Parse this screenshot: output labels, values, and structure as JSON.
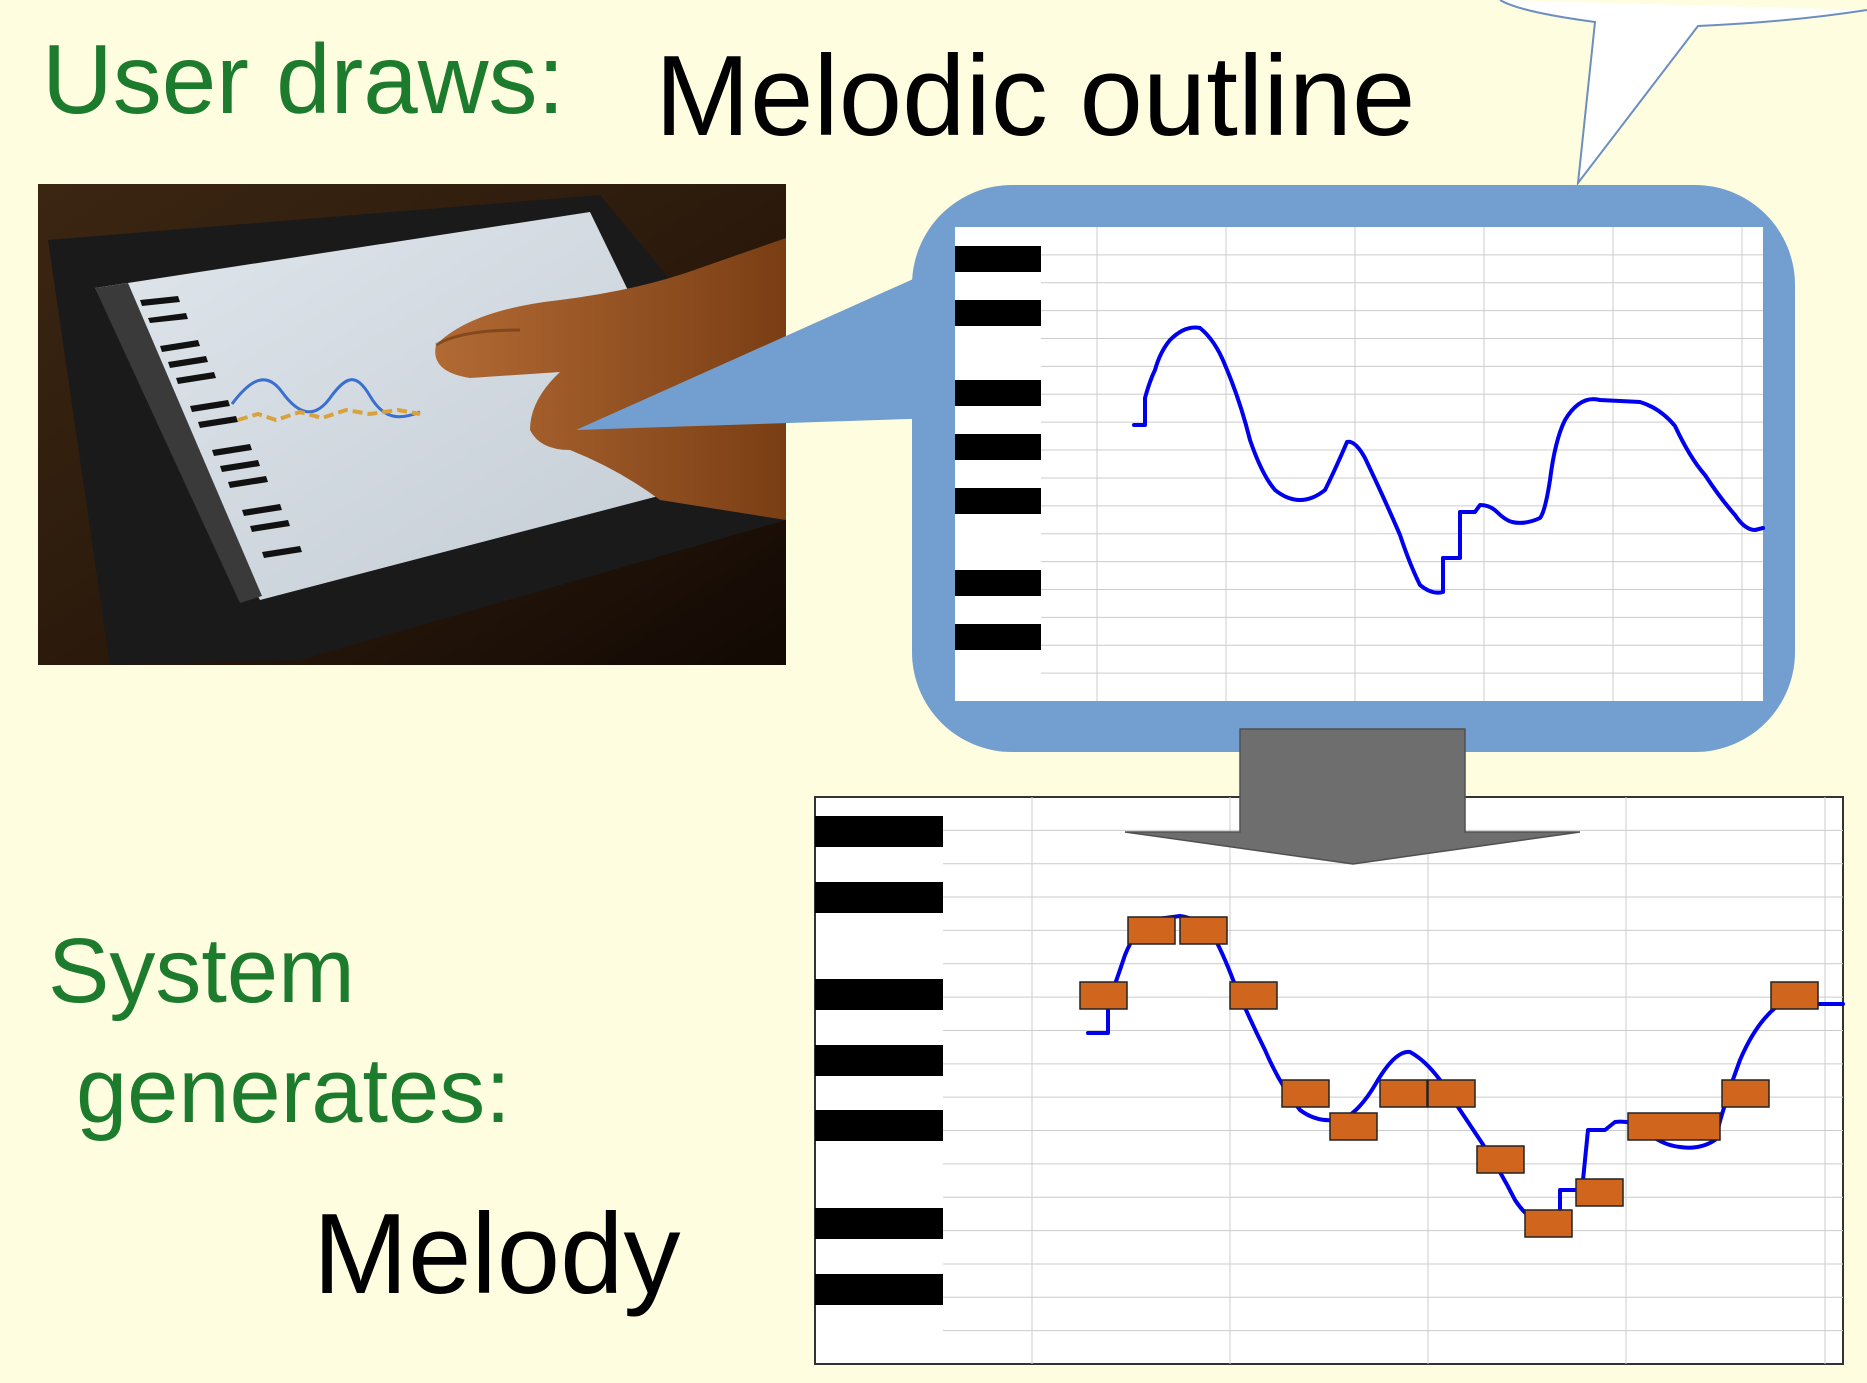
{
  "labels": {
    "user_draws": "User draws:",
    "melodic_outline": "Melodic outline",
    "system_generates_line1": "System",
    "system_generates_line2": "generates:",
    "melody": "Melody"
  },
  "colors": {
    "background": "#fffddf",
    "label_green": "#1c7b2c",
    "bubble_blue": "#729fcf",
    "curve_blue": "#0000ee",
    "note_orange": "#d0661e",
    "arrow_gray": "#6e6e6e"
  }
}
